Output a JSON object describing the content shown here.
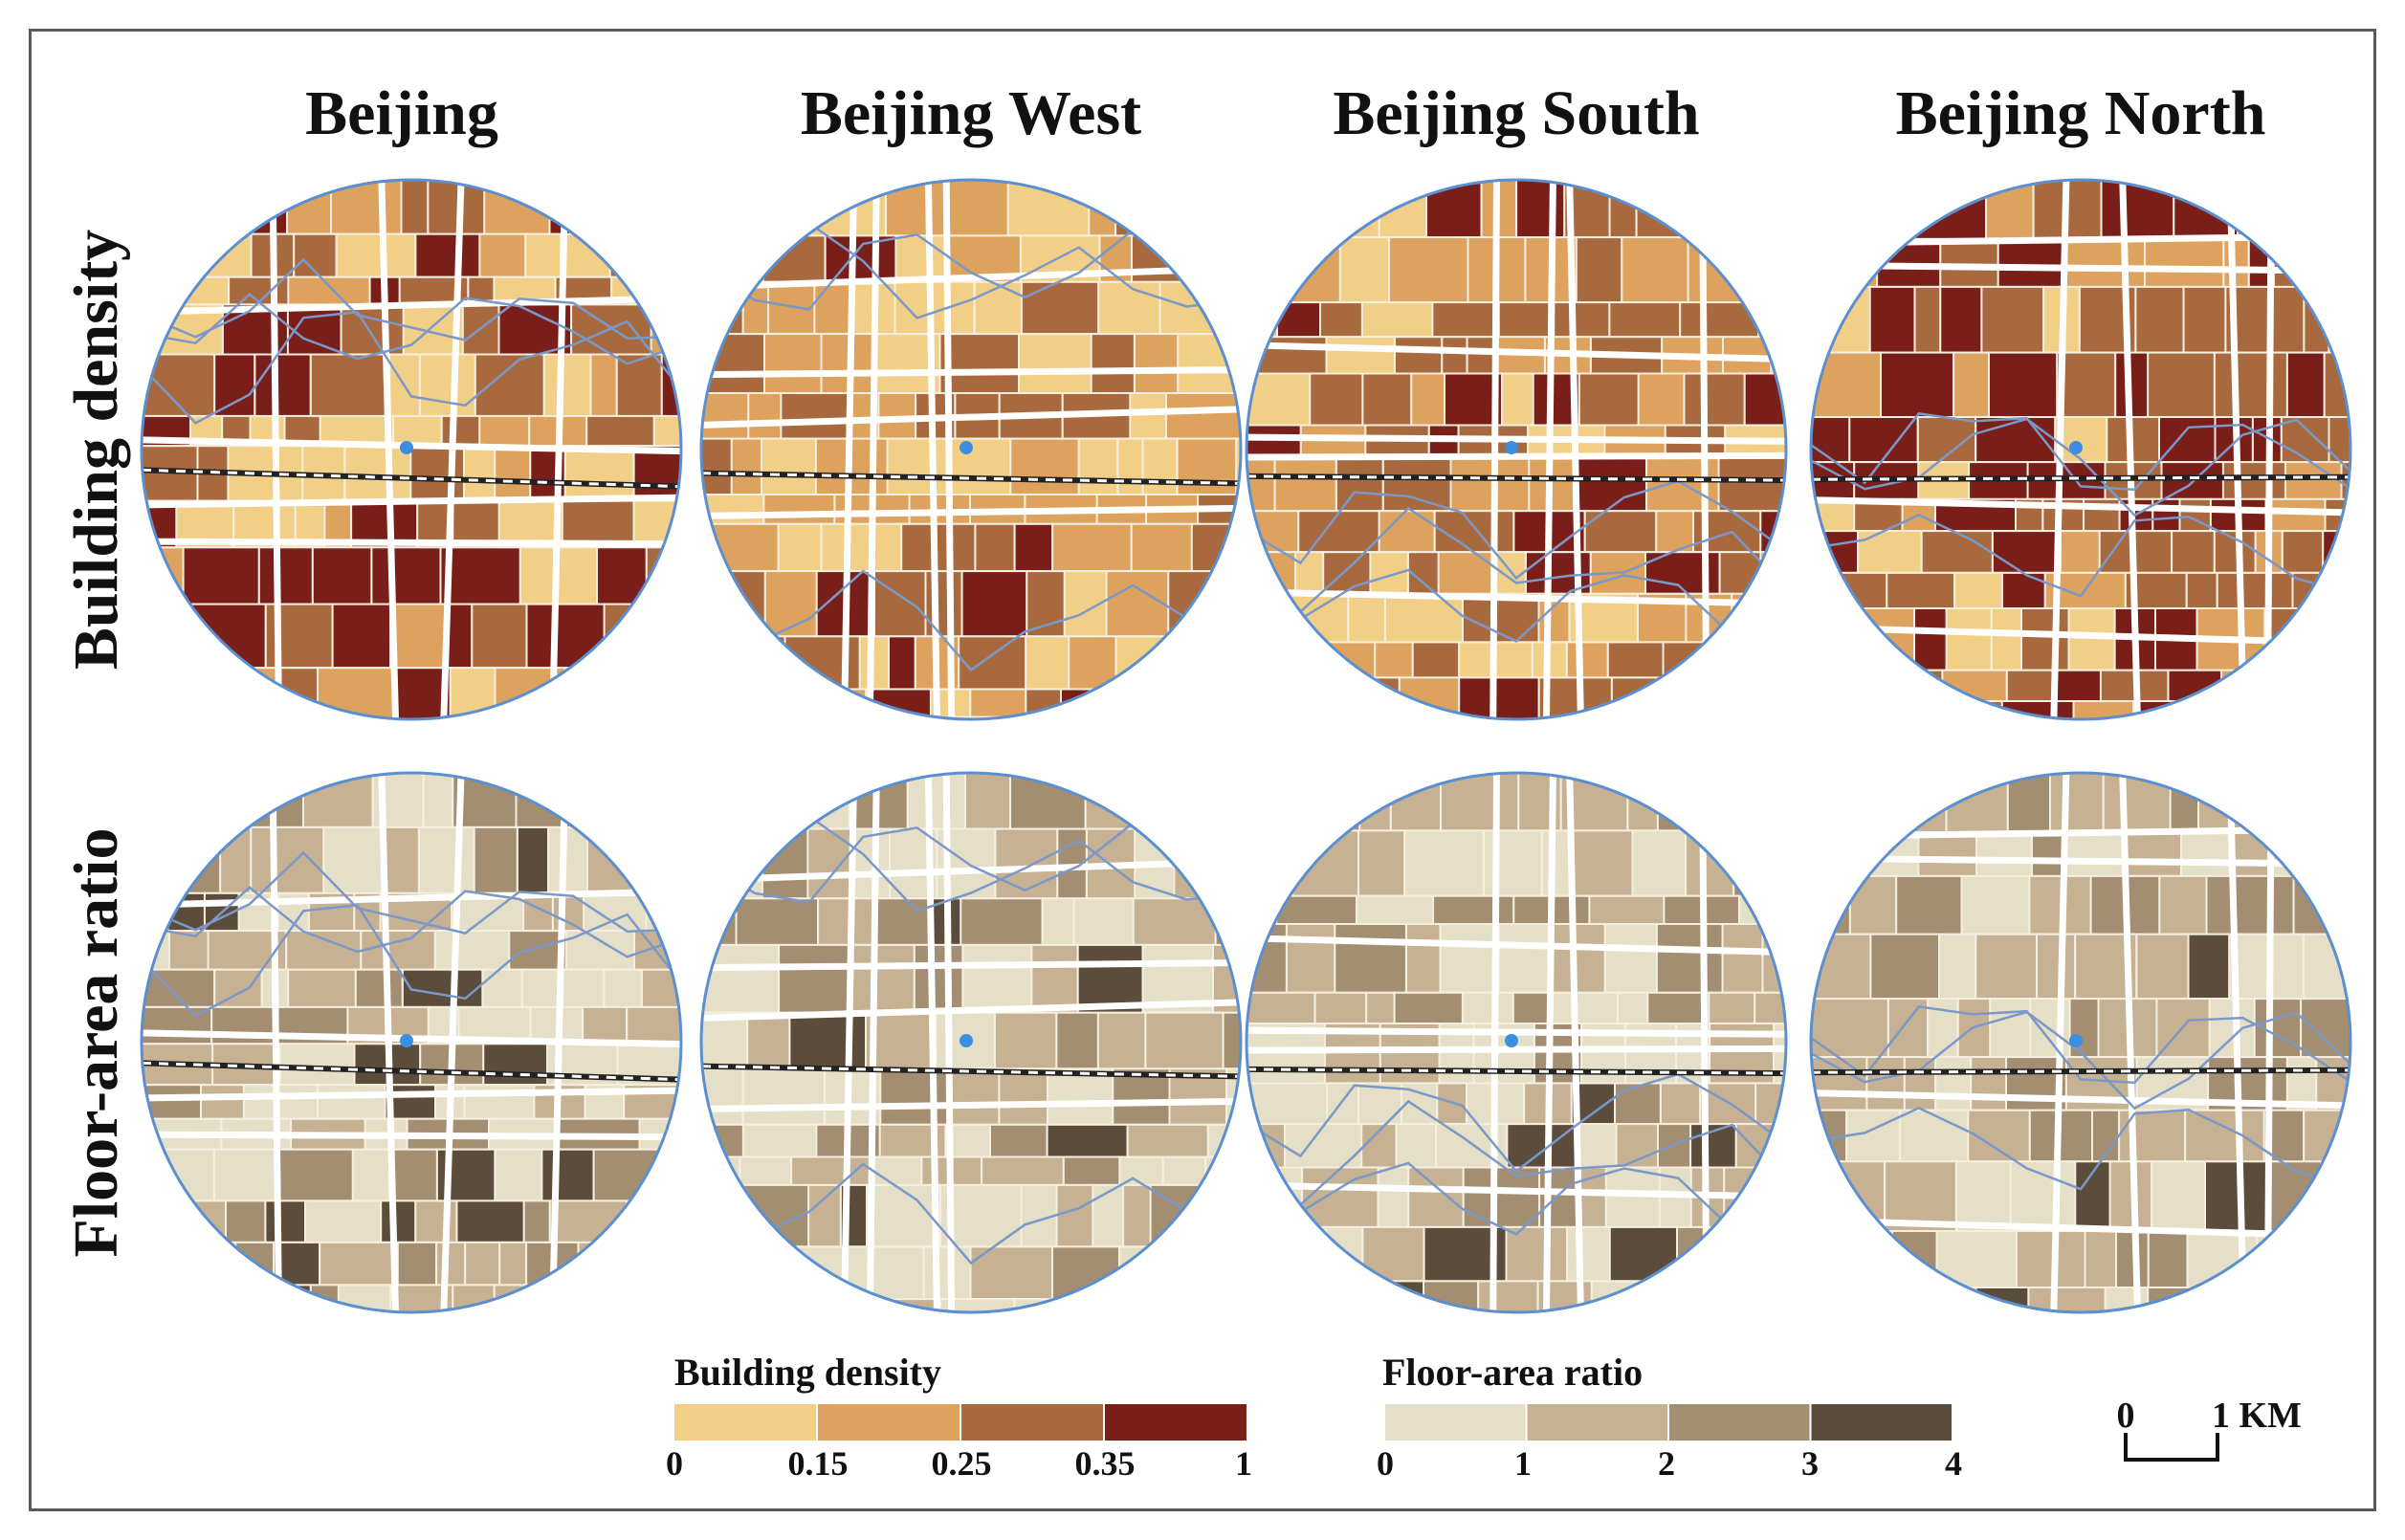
{
  "columns": [
    "Beijing",
    "Beijing West",
    "Beijing South",
    "Beijing North"
  ],
  "rows": [
    "Building density",
    "Floor-area ratio"
  ],
  "legend_density": {
    "title": "Building density",
    "breaks": [
      "0",
      "0.15",
      "0.25",
      "0.35",
      "1"
    ],
    "colors": [
      "#f2cf86",
      "#dca25e",
      "#a8693e",
      "#7a1e1a"
    ]
  },
  "legend_far": {
    "title": "Floor-area ratio",
    "breaks": [
      "0",
      "1",
      "2",
      "3",
      "4"
    ],
    "colors": [
      "#e6dfc8",
      "#c6b292",
      "#a48e72",
      "#5c4c3b"
    ]
  },
  "scale_bar": {
    "start": "0",
    "end": "1 KM"
  },
  "colors": {
    "river": "#7a98c8",
    "road": "#ffffff",
    "station": "#3c8ee0",
    "circle_border": "#5b8fd0"
  }
}
